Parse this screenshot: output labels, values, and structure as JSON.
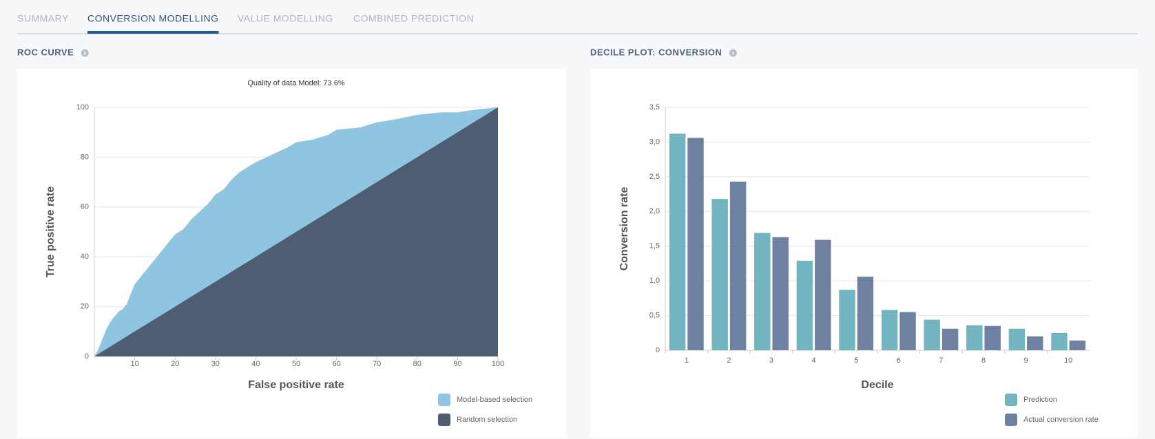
{
  "tabs": [
    "SUMMARY",
    "CONVERSION MODELLING",
    "VALUE MODELLING",
    "COMBINED PREDICTION"
  ],
  "active_tab": 1,
  "chart_data": [
    {
      "type": "area",
      "title": "ROC CURVE",
      "subtitle": "Quality of data Model: 73.6%",
      "x_label": "False positive rate",
      "y_label": "True positive rate",
      "x": [
        0,
        1,
        2,
        3,
        4,
        5,
        6,
        7,
        8,
        9,
        10,
        12,
        14,
        16,
        18,
        20,
        22,
        24,
        26,
        28,
        30,
        32,
        34,
        36,
        38,
        40,
        44,
        48,
        50,
        54,
        58,
        60,
        66,
        70,
        74,
        80,
        86,
        90,
        94,
        100
      ],
      "series": [
        {
          "name": "Model-based selection",
          "color": "#8fc5e0",
          "values": [
            0,
            3,
            7,
            11,
            14,
            16,
            18,
            19,
            21,
            25,
            29,
            33,
            37,
            41,
            45,
            49,
            51,
            55,
            58,
            61,
            65,
            67,
            71,
            74,
            76,
            78,
            81,
            84,
            86,
            87,
            89,
            91,
            92,
            94,
            95,
            97,
            98,
            98,
            99,
            100
          ]
        },
        {
          "name": "Random selection",
          "color": "#4e5d72",
          "values": [
            0,
            1,
            2,
            3,
            4,
            5,
            6,
            7,
            8,
            9,
            10,
            12,
            14,
            16,
            18,
            20,
            22,
            24,
            26,
            28,
            30,
            32,
            34,
            36,
            38,
            40,
            44,
            48,
            50,
            54,
            58,
            60,
            66,
            70,
            74,
            80,
            86,
            90,
            94,
            100
          ]
        }
      ],
      "xlim": [
        0,
        100
      ],
      "xticks": [
        10,
        20,
        30,
        40,
        50,
        60,
        70,
        80,
        90,
        100
      ],
      "ylim": [
        0,
        100
      ],
      "yticks": [
        0,
        20,
        40,
        60,
        80,
        100
      ],
      "grid": true,
      "legend": "bottom-right"
    },
    {
      "type": "bar",
      "title": "DECILE PLOT: CONVERSION",
      "x_label": "Decile",
      "y_label": "Conversion rate",
      "categories": [
        "1",
        "2",
        "3",
        "4",
        "5",
        "6",
        "7",
        "8",
        "9",
        "10"
      ],
      "series": [
        {
          "name": "Prediction",
          "color": "#72b4c0",
          "values": [
            3.12,
            2.18,
            1.69,
            1.29,
            0.87,
            0.58,
            0.44,
            0.36,
            0.31,
            0.25
          ]
        },
        {
          "name": "Actual conversion rate",
          "color": "#6e81a0",
          "values": [
            3.06,
            2.43,
            1.63,
            1.59,
            1.06,
            0.55,
            0.31,
            0.35,
            0.2,
            0.14
          ]
        }
      ],
      "ylim": [
        0,
        3.5
      ],
      "yticks": [
        0,
        {
          "value": 0.5,
          "label": "0,5"
        },
        {
          "value": 1,
          "label": "1,0"
        },
        {
          "value": 1.5,
          "label": "1,5"
        },
        {
          "value": 2,
          "label": "2,0"
        },
        {
          "value": 2.5,
          "label": "2,5"
        },
        {
          "value": 3,
          "label": "3,0"
        },
        {
          "value": 3.5,
          "label": "3,5"
        }
      ],
      "grid": true,
      "legend": "bottom-right"
    }
  ]
}
